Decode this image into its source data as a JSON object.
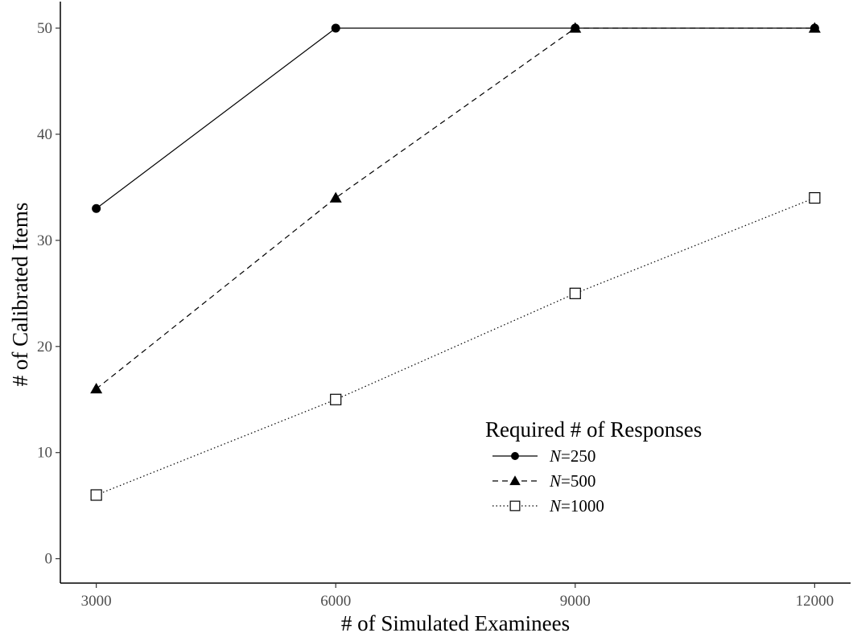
{
  "chart_data": {
    "type": "line",
    "xlabel": "# of Simulated Examinees",
    "ylabel": "# of Calibrated Items",
    "x": [
      3000,
      6000,
      9000,
      12000
    ],
    "xticks": [
      "3000",
      "6000",
      "9000",
      "12000"
    ],
    "yticks": [
      "0",
      "10",
      "20",
      "30",
      "40",
      "50"
    ],
    "xlim": [
      2550,
      12450
    ],
    "ylim": [
      -2.3,
      52.5
    ],
    "grid": false,
    "legend": {
      "title": "Required # of Responses",
      "position": "bottom-right"
    },
    "series": [
      {
        "name": "N=250",
        "prefix": "N",
        "suffix": "=250",
        "values": [
          33,
          50,
          50,
          50
        ],
        "marker": "circle",
        "dash": "solid"
      },
      {
        "name": "N=500",
        "prefix": "N",
        "suffix": "=500",
        "values": [
          16,
          34,
          50,
          50
        ],
        "marker": "triangle",
        "dash": "dashed"
      },
      {
        "name": "N=1000",
        "prefix": "N",
        "suffix": "=1000",
        "values": [
          6,
          15,
          25,
          34
        ],
        "marker": "open-square",
        "dash": "dotted"
      }
    ]
  }
}
